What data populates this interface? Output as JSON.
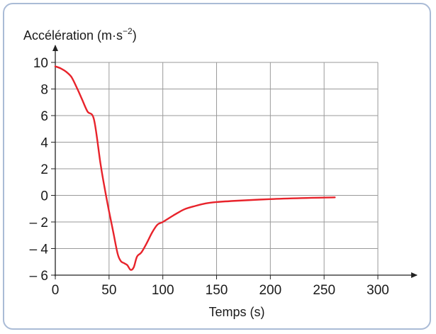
{
  "chart_data": {
    "type": "line",
    "ylabel": "Accélération (m·s",
    "ylabel_exp": "−2",
    "ylabel_close": ")",
    "xlabel": "Temps (s)",
    "xlim": [
      0,
      300
    ],
    "ylim": [
      -6,
      10
    ],
    "xticks": [
      0,
      50,
      100,
      150,
      200,
      250,
      300
    ],
    "xtick_labels": [
      "0",
      "50",
      "100",
      "150",
      "200",
      "250",
      "300"
    ],
    "yticks": [
      10,
      8,
      6,
      4,
      2,
      0,
      -2,
      -4,
      -6
    ],
    "ytick_labels": [
      "10",
      "8",
      "6",
      "4",
      "2",
      "0",
      "– 2",
      "– 4",
      "– 6"
    ],
    "grid": true,
    "series": [
      {
        "color": "#e8232b",
        "x": [
          0,
          5,
          10,
          15,
          20,
          25,
          30,
          36,
          42,
          46,
          50,
          54,
          58,
          61,
          64,
          67,
          70,
          73,
          76,
          80,
          85,
          90,
          95,
          100,
          110,
          120,
          130,
          140,
          150,
          170,
          200,
          230,
          260
        ],
        "y": [
          9.7,
          9.55,
          9.3,
          8.9,
          8.1,
          7.2,
          6.3,
          5.7,
          2.4,
          0.5,
          -1.2,
          -2.8,
          -4.4,
          -4.95,
          -5.1,
          -5.25,
          -5.6,
          -5.4,
          -4.6,
          -4.3,
          -3.6,
          -2.8,
          -2.2,
          -2.0,
          -1.5,
          -1.05,
          -0.8,
          -0.6,
          -0.5,
          -0.4,
          -0.28,
          -0.2,
          -0.15
        ]
      }
    ]
  }
}
